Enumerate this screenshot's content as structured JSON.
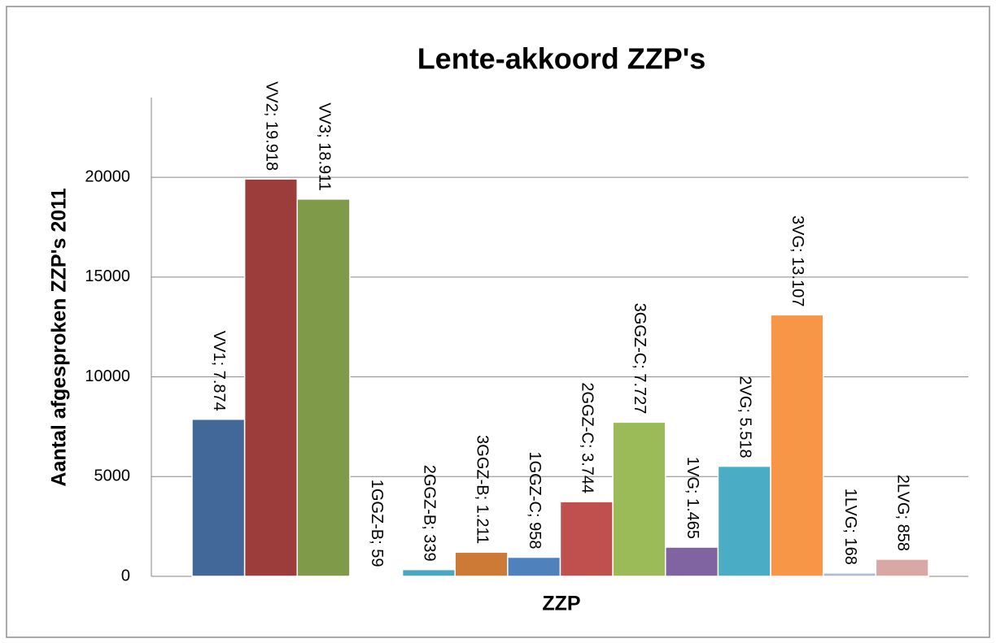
{
  "chart_data": {
    "type": "bar",
    "title": "Lente-akkoord ZZP's",
    "y_label": "Aantal afgesproken ZZP's 2011",
    "x_label": "ZZP",
    "values": [
      7874,
      19918,
      18911,
      59,
      339,
      1211,
      958,
      3744,
      7727,
      1465,
      5518,
      13107,
      168,
      858
    ],
    "value_labels": [
      "VV1; 7.874",
      "VV2; 19.918",
      "VV3; 18.911",
      "1GGZ-B; 59",
      "2GGZ-B; 339",
      "3GGZ-B; 1.211",
      "1GGZ-C; 958",
      "2GGZ-C; 3.744",
      "3GGZ-C; 7.727",
      "1VG; 1.465",
      "2VG; 5.518",
      "3VG; 13.107",
      "1LVG; 168",
      "2LVG; 858"
    ],
    "colors": [
      "#426899",
      "#9c3d3b",
      "#7f9a48",
      "#6a548e",
      "#4aa7c1",
      "#cd7a37",
      "#4f81bd",
      "#c0504d",
      "#9bbb59",
      "#8064a2",
      "#4bacc6",
      "#f79646",
      "#aabad7",
      "#d9a7a6"
    ],
    "ylim": [
      0,
      24000
    ],
    "yticks": [
      0,
      5000,
      10000,
      15000,
      20000
    ],
    "grid": true
  }
}
